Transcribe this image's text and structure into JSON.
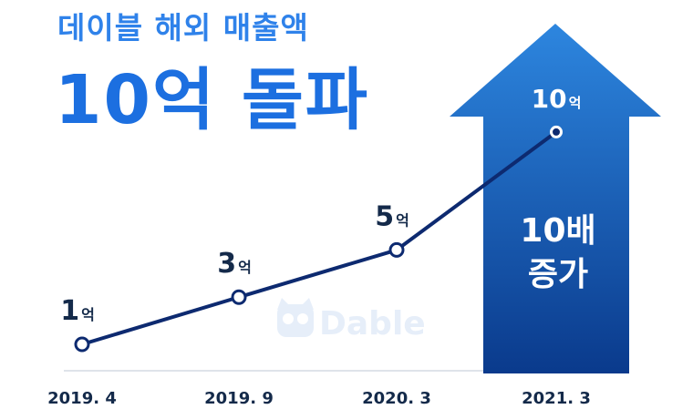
{
  "header": {
    "subtitle": "데이블 해외 매출액",
    "headline": "10억 돌파"
  },
  "watermark": {
    "brand": "Dable"
  },
  "arrow": {
    "line1": "10배",
    "line2": "증가"
  },
  "colors": {
    "title": "#2f82ea",
    "hero": "#1c6fe0",
    "line": "#0d2a70",
    "arrow_top": "#2d86df",
    "arrow_bottom": "#0a3a8c",
    "watermark": "#e6eef9"
  },
  "chart_data": {
    "type": "line",
    "categories": [
      "2019. 4",
      "2019. 9",
      "2020. 3",
      "2021. 3"
    ],
    "values": [
      1,
      3,
      5,
      10
    ],
    "data_labels": [
      {
        "number": "1",
        "unit": "억"
      },
      {
        "number": "3",
        "unit": "억"
      },
      {
        "number": "5",
        "unit": "억"
      },
      {
        "number": "10",
        "unit": "억"
      }
    ],
    "ylim": [
      0,
      10
    ],
    "grid": false,
    "legend": "none"
  }
}
